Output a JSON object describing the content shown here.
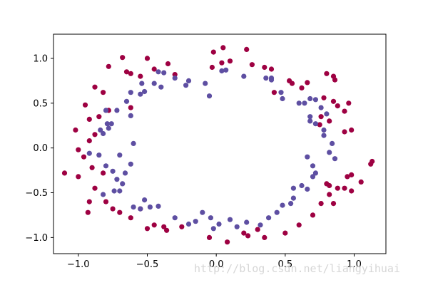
{
  "chart_data": {
    "type": "scatter",
    "title": "",
    "xlabel": "",
    "ylabel": "",
    "xlim": [
      -1.18,
      1.23
    ],
    "ylim": [
      -1.18,
      1.27
    ],
    "grid": false,
    "legend": "none",
    "x_ticks": [
      {
        "value": -1.0,
        "label": "−1.0"
      },
      {
        "value": -0.5,
        "label": "−0.5"
      },
      {
        "value": 0.0,
        "label": "0.0"
      },
      {
        "value": 0.5,
        "label": "0.5"
      },
      {
        "value": 1.0,
        "label": "1.0"
      }
    ],
    "y_ticks": [
      {
        "value": -1.0,
        "label": "−1.0"
      },
      {
        "value": -0.5,
        "label": "−0.5"
      },
      {
        "value": 0.0,
        "label": "0.0"
      },
      {
        "value": 0.5,
        "label": "0.5"
      },
      {
        "value": 1.0,
        "label": "1.0"
      }
    ],
    "colors": {
      "class_0": "#9e0142",
      "class_1": "#5e4fa2"
    },
    "series": [
      {
        "class": 0,
        "color": "#9e0142",
        "points": [
          [
            0.05,
            1.12
          ],
          [
            0.22,
            1.1
          ],
          [
            -0.02,
            1.07
          ],
          [
            -0.5,
            1.0
          ],
          [
            -0.68,
            1.01
          ],
          [
            -0.78,
            0.91
          ],
          [
            -0.65,
            0.85
          ],
          [
            -0.45,
            0.88
          ],
          [
            -0.62,
            0.83
          ],
          [
            -0.55,
            0.8
          ],
          [
            -0.35,
            0.94
          ],
          [
            -0.3,
            0.82
          ],
          [
            0.04,
            0.95
          ],
          [
            0.1,
            0.97
          ],
          [
            0.26,
            0.93
          ],
          [
            -0.03,
            0.9
          ],
          [
            0.4,
            0.88
          ],
          [
            0.35,
            0.9
          ],
          [
            0.8,
            0.83
          ],
          [
            0.85,
            0.8
          ],
          [
            0.86,
            0.76
          ],
          [
            0.55,
            0.72
          ],
          [
            0.66,
            0.73
          ],
          [
            0.53,
            0.75
          ],
          [
            0.62,
            0.67
          ],
          [
            -0.88,
            0.68
          ],
          [
            -0.82,
            0.62
          ],
          [
            -0.95,
            0.48
          ],
          [
            -0.62,
            0.45
          ],
          [
            -0.78,
            0.42
          ],
          [
            -0.85,
            0.35
          ],
          [
            -0.92,
            0.32
          ],
          [
            0.85,
            0.52
          ],
          [
            0.88,
            0.47
          ],
          [
            0.93,
            0.41
          ],
          [
            0.76,
            0.35
          ],
          [
            0.82,
            0.3
          ],
          [
            0.75,
            0.26
          ],
          [
            0.98,
            0.2
          ],
          [
            0.93,
            0.18
          ],
          [
            -1.02,
            0.2
          ],
          [
            -0.88,
            0.15
          ],
          [
            -0.92,
            0.08
          ],
          [
            -1.0,
            -0.02
          ],
          [
            -0.96,
            -0.1
          ],
          [
            -1.1,
            -0.28
          ],
          [
            -1.0,
            -0.32
          ],
          [
            -0.9,
            -0.22
          ],
          [
            -0.82,
            -0.28
          ],
          [
            -0.88,
            -0.45
          ],
          [
            -0.92,
            -0.6
          ],
          [
            -0.8,
            -0.6
          ],
          [
            -0.93,
            -0.72
          ],
          [
            -0.75,
            -0.68
          ],
          [
            -0.7,
            -0.72
          ],
          [
            -0.62,
            -0.78
          ],
          [
            -0.55,
            -0.68
          ],
          [
            -0.45,
            -0.86
          ],
          [
            -0.5,
            -0.9
          ],
          [
            -0.36,
            -0.92
          ],
          [
            -0.38,
            -0.88
          ],
          [
            -0.25,
            -0.88
          ],
          [
            -0.05,
            -1.0
          ],
          [
            0.08,
            -1.05
          ],
          [
            0.3,
            -0.91
          ],
          [
            0.2,
            -0.95
          ],
          [
            0.23,
            -0.98
          ],
          [
            0.35,
            -1.0
          ],
          [
            0.5,
            -0.95
          ],
          [
            0.6,
            -0.86
          ],
          [
            0.7,
            -0.75
          ],
          [
            0.76,
            -0.62
          ],
          [
            0.82,
            -0.52
          ],
          [
            0.88,
            -0.45
          ],
          [
            0.93,
            -0.45
          ],
          [
            0.98,
            -0.48
          ],
          [
            1.05,
            -0.38
          ],
          [
            1.13,
            -0.15
          ],
          [
            1.12,
            -0.18
          ],
          [
            0.95,
            -0.32
          ],
          [
            0.98,
            -0.3
          ],
          [
            0.8,
            -0.4
          ],
          [
            0.85,
            -0.62
          ],
          [
            0.82,
            -0.42
          ],
          [
            0.96,
            0.5
          ],
          [
            0.78,
            0.56
          ],
          [
            0.42,
            0.62
          ]
        ]
      },
      {
        "class": 1,
        "color": "#5e4fa2",
        "points": [
          [
            -0.42,
            0.85
          ],
          [
            -0.38,
            0.84
          ],
          [
            -0.54,
            0.72
          ],
          [
            -0.52,
            0.63
          ],
          [
            -0.62,
            0.62
          ],
          [
            -0.65,
            0.52
          ],
          [
            -0.72,
            0.42
          ],
          [
            -0.8,
            0.42
          ],
          [
            -0.62,
            0.36
          ],
          [
            -0.78,
            0.22
          ],
          [
            -0.79,
            0.27
          ],
          [
            -0.76,
            0.27
          ],
          [
            -0.82,
            0.16
          ],
          [
            -0.84,
            0.2
          ],
          [
            -0.55,
            0.6
          ],
          [
            -0.45,
            0.72
          ],
          [
            -0.22,
            0.7
          ],
          [
            -0.08,
            0.72
          ],
          [
            -0.05,
            0.58
          ],
          [
            -0.4,
            0.68
          ],
          [
            -0.3,
            0.78
          ],
          [
            0.04,
            0.86
          ],
          [
            0.07,
            0.87
          ],
          [
            0.36,
            0.78
          ],
          [
            0.4,
            0.78
          ],
          [
            0.47,
            0.62
          ],
          [
            0.48,
            0.55
          ],
          [
            0.6,
            0.5
          ],
          [
            0.64,
            0.5
          ],
          [
            0.68,
            0.55
          ],
          [
            0.72,
            0.54
          ],
          [
            0.76,
            0.45
          ],
          [
            0.8,
            0.38
          ],
          [
            0.68,
            0.35
          ],
          [
            0.68,
            0.3
          ],
          [
            0.72,
            0.27
          ],
          [
            0.78,
            0.2
          ],
          [
            0.78,
            0.14
          ],
          [
            0.84,
            0.05
          ],
          [
            0.82,
            -0.05
          ],
          [
            0.86,
            -0.12
          ],
          [
            0.66,
            -0.1
          ],
          [
            0.7,
            -0.2
          ],
          [
            0.72,
            -0.28
          ],
          [
            0.7,
            -0.32
          ],
          [
            0.62,
            -0.42
          ],
          [
            0.56,
            -0.45
          ],
          [
            0.66,
            -0.46
          ],
          [
            0.56,
            -0.56
          ],
          [
            0.54,
            -0.62
          ],
          [
            0.48,
            -0.64
          ],
          [
            0.44,
            -0.72
          ],
          [
            0.38,
            -0.78
          ],
          [
            0.32,
            -0.86
          ],
          [
            0.22,
            -0.83
          ],
          [
            0.15,
            -0.88
          ],
          [
            0.1,
            -0.8
          ],
          [
            0.02,
            -0.85
          ],
          [
            -0.02,
            -0.9
          ],
          [
            -0.04,
            -0.78
          ],
          [
            -0.1,
            -0.72
          ],
          [
            -0.15,
            -0.82
          ],
          [
            -0.2,
            -0.85
          ],
          [
            -0.3,
            -0.78
          ],
          [
            -0.42,
            -0.65
          ],
          [
            -0.48,
            -0.66
          ],
          [
            -0.52,
            -0.58
          ],
          [
            -0.55,
            -0.68
          ],
          [
            -0.6,
            -0.66
          ],
          [
            -0.7,
            -0.48
          ],
          [
            -0.74,
            -0.48
          ],
          [
            -0.82,
            -0.52
          ],
          [
            -0.68,
            -0.4
          ],
          [
            -0.72,
            -0.35
          ],
          [
            -0.66,
            -0.28
          ],
          [
            -0.75,
            -0.26
          ],
          [
            -0.8,
            -0.2
          ],
          [
            -0.85,
            -0.08
          ],
          [
            -0.92,
            -0.06
          ],
          [
            -0.7,
            -0.08
          ],
          [
            -0.6,
            0.05
          ],
          [
            -0.62,
            -0.18
          ],
          [
            -0.2,
            0.75
          ],
          [
            0.2,
            0.8
          ],
          [
            0.4,
            0.76
          ]
        ]
      }
    ]
  },
  "watermark": "http://blog.csdn.net/liangyihuai"
}
